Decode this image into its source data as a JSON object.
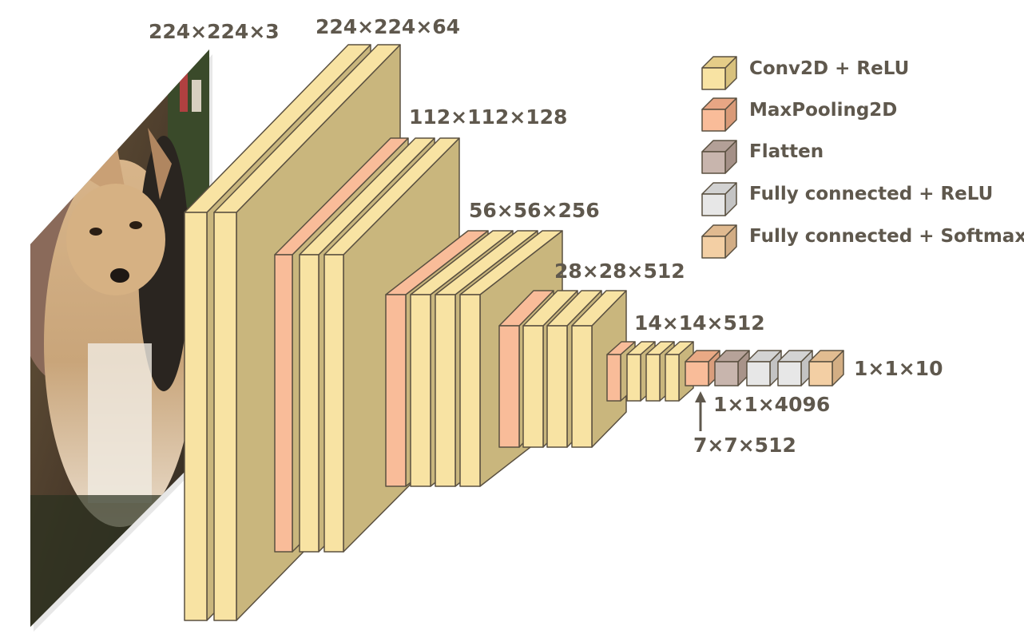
{
  "colors": {
    "conv": "#f8e3a3",
    "maxpool": "#f9bc99",
    "flatten": "#c8b5ad",
    "fc_relu": "#e7e7e7",
    "fc_softmax": "#f3cfa4",
    "text": "#5f584d",
    "outline": "#5a5040"
  },
  "input_image": {
    "icon": "chihuahua-photo"
  },
  "dimension_labels": {
    "input": "224×224×3",
    "block1": "224×224×64",
    "block2": "112×112×128",
    "block3": "56×56×256",
    "block4": "28×28×512",
    "block5": "14×14×512",
    "pool5": "7×7×512",
    "fc": "1×1×4096",
    "output": "1×1×10"
  },
  "legend": {
    "items": [
      {
        "label": "Conv2D + ReLU",
        "color": "#f8e3a3"
      },
      {
        "label": "MaxPooling2D",
        "color": "#f9bc99"
      },
      {
        "label": "Flatten",
        "color": "#c8b5ad"
      },
      {
        "label": "Fully connected + ReLU",
        "color": "#e7e7e7"
      },
      {
        "label": "Fully connected + Softmax",
        "color": "#f3cfa4"
      }
    ]
  }
}
